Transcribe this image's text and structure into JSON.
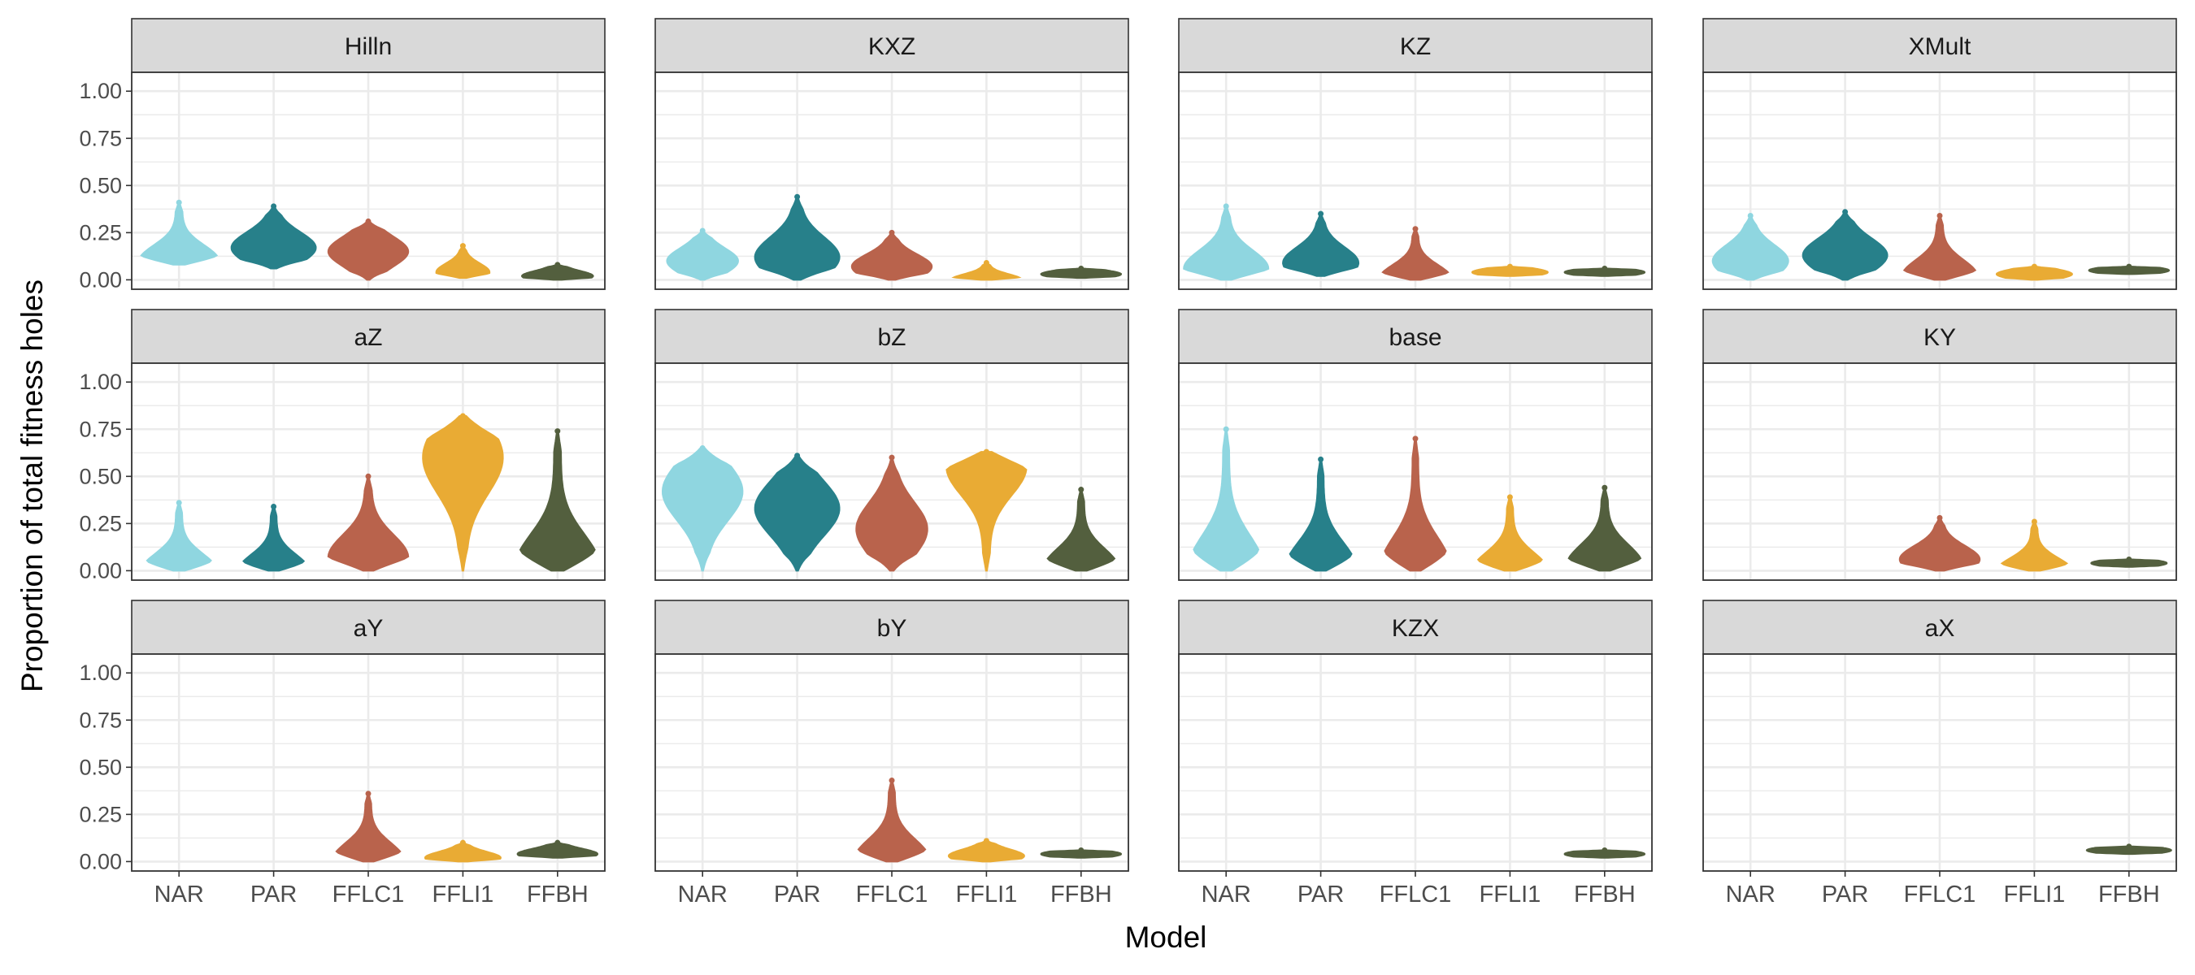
{
  "chart_data": {
    "type": "violin",
    "xlabel": "Model",
    "ylabel": "Proportion of total fitness holes",
    "ylim": [
      -0.05,
      1.1
    ],
    "y_ticks": [
      0.0,
      0.25,
      0.5,
      0.75,
      1.0
    ],
    "y_tick_labels": [
      "0.00",
      "0.25",
      "0.50",
      "0.75",
      "1.00"
    ],
    "categories": [
      "NAR",
      "PAR",
      "FFLC1",
      "FFLI1",
      "FFBH"
    ],
    "colors": {
      "NAR": "#8fd6e0",
      "PAR": "#27808a",
      "FFLC1": "#b9634c",
      "FFLI1": "#e9ab34",
      "FFBH": "#535f3e",
      "strip_fill": "#d9d9d9",
      "grid": "#ebebeb"
    },
    "grid": true,
    "layout": "facet_wrap 3 rows x 4 columns",
    "panels": [
      {
        "title": "Hilln",
        "violins": [
          {
            "model": "NAR",
            "min": 0.08,
            "max": 0.41,
            "mode": 0.1,
            "width": 0.9
          },
          {
            "model": "PAR",
            "min": 0.06,
            "max": 0.39,
            "mode": 0.17,
            "width": 0.95
          },
          {
            "model": "FFLC1",
            "min": 0.0,
            "max": 0.31,
            "mode": 0.15,
            "width": 0.9
          },
          {
            "model": "FFLI1",
            "min": 0.01,
            "max": 0.18,
            "mode": 0.04,
            "width": 0.6
          },
          {
            "model": "FFBH",
            "min": 0.0,
            "max": 0.08,
            "mode": 0.02,
            "width": 0.8
          }
        ]
      },
      {
        "title": "KXZ",
        "violins": [
          {
            "model": "NAR",
            "min": 0.0,
            "max": 0.26,
            "mode": 0.1,
            "width": 0.8
          },
          {
            "model": "PAR",
            "min": 0.0,
            "max": 0.44,
            "mode": 0.12,
            "width": 0.95
          },
          {
            "model": "FFLC1",
            "min": 0.0,
            "max": 0.25,
            "mode": 0.07,
            "width": 0.9
          },
          {
            "model": "FFLI1",
            "min": 0.0,
            "max": 0.09,
            "mode": 0.0,
            "width": 0.8
          },
          {
            "model": "FFBH",
            "min": 0.01,
            "max": 0.06,
            "mode": 0.03,
            "width": 0.9
          }
        ]
      },
      {
        "title": "KZ",
        "violins": [
          {
            "model": "NAR",
            "min": 0.0,
            "max": 0.39,
            "mode": 0.06,
            "width": 0.95
          },
          {
            "model": "PAR",
            "min": 0.02,
            "max": 0.35,
            "mode": 0.09,
            "width": 0.85
          },
          {
            "model": "FFLC1",
            "min": 0.0,
            "max": 0.27,
            "mode": 0.01,
            "width": 0.8
          },
          {
            "model": "FFLI1",
            "min": 0.02,
            "max": 0.07,
            "mode": 0.04,
            "width": 0.85
          },
          {
            "model": "FFBH",
            "min": 0.02,
            "max": 0.06,
            "mode": 0.04,
            "width": 0.9
          }
        ]
      },
      {
        "title": "XMult",
        "violins": [
          {
            "model": "NAR",
            "min": 0.0,
            "max": 0.34,
            "mode": 0.1,
            "width": 0.85
          },
          {
            "model": "PAR",
            "min": 0.0,
            "max": 0.36,
            "mode": 0.13,
            "width": 0.95
          },
          {
            "model": "FFLC1",
            "min": 0.0,
            "max": 0.34,
            "mode": 0.02,
            "width": 0.85
          },
          {
            "model": "FFLI1",
            "min": 0.0,
            "max": 0.07,
            "mode": 0.03,
            "width": 0.85
          },
          {
            "model": "FFBH",
            "min": 0.03,
            "max": 0.07,
            "mode": 0.05,
            "width": 0.9
          }
        ]
      },
      {
        "title": "aZ",
        "violins": [
          {
            "model": "NAR",
            "min": 0.0,
            "max": 0.36,
            "mode": 0.0,
            "width": 0.85
          },
          {
            "model": "PAR",
            "min": 0.0,
            "max": 0.34,
            "mode": 0.0,
            "width": 0.8
          },
          {
            "model": "FFLC1",
            "min": 0.0,
            "max": 0.5,
            "mode": 0.07,
            "width": 0.9
          },
          {
            "model": "FFLI1",
            "min": 0.0,
            "max": 0.82,
            "mode": 0.6,
            "width": 0.9
          },
          {
            "model": "FFBH",
            "min": 0.0,
            "max": 0.74,
            "mode": 0.02,
            "width": 0.95
          }
        ]
      },
      {
        "title": "bZ",
        "violins": [
          {
            "model": "NAR",
            "min": 0.0,
            "max": 0.65,
            "mode": 0.42,
            "width": 0.9
          },
          {
            "model": "PAR",
            "min": 0.0,
            "max": 0.61,
            "mode": 0.33,
            "width": 0.95
          },
          {
            "model": "FFLC1",
            "min": 0.0,
            "max": 0.6,
            "mode": 0.22,
            "width": 0.8
          },
          {
            "model": "FFLI1",
            "min": 0.0,
            "max": 0.63,
            "mode": 0.55,
            "width": 0.9
          },
          {
            "model": "FFBH",
            "min": 0.0,
            "max": 0.43,
            "mode": 0.01,
            "width": 0.85
          }
        ]
      },
      {
        "title": "base",
        "violins": [
          {
            "model": "NAR",
            "min": 0.0,
            "max": 0.75,
            "mode": 0.01,
            "width": 0.85
          },
          {
            "model": "PAR",
            "min": 0.0,
            "max": 0.59,
            "mode": 0.01,
            "width": 0.8
          },
          {
            "model": "FFLC1",
            "min": 0.0,
            "max": 0.7,
            "mode": 0.01,
            "width": 0.8
          },
          {
            "model": "FFLI1",
            "min": 0.0,
            "max": 0.39,
            "mode": 0.0,
            "width": 0.85
          },
          {
            "model": "FFBH",
            "min": 0.0,
            "max": 0.44,
            "mode": 0.03,
            "width": 0.85
          }
        ]
      },
      {
        "title": "KY",
        "violins": [
          {
            "model": "FFLC1",
            "min": 0.0,
            "max": 0.28,
            "mode": 0.06,
            "width": 0.9
          },
          {
            "model": "FFLI1",
            "min": 0.0,
            "max": 0.26,
            "mode": 0.0,
            "width": 0.85
          },
          {
            "model": "FFBH",
            "min": 0.02,
            "max": 0.06,
            "mode": 0.04,
            "width": 0.85
          }
        ]
      },
      {
        "title": "aY",
        "violins": [
          {
            "model": "FFLC1",
            "min": 0.0,
            "max": 0.36,
            "mode": 0.01,
            "width": 0.8
          },
          {
            "model": "FFLI1",
            "min": 0.0,
            "max": 0.1,
            "mode": 0.02,
            "width": 0.85
          },
          {
            "model": "FFBH",
            "min": 0.02,
            "max": 0.1,
            "mode": 0.04,
            "width": 0.9
          }
        ]
      },
      {
        "title": "bY",
        "violins": [
          {
            "model": "FFLC1",
            "min": 0.0,
            "max": 0.43,
            "mode": 0.01,
            "width": 0.85
          },
          {
            "model": "FFLI1",
            "min": 0.0,
            "max": 0.11,
            "mode": 0.03,
            "width": 0.85
          },
          {
            "model": "FFBH",
            "min": 0.02,
            "max": 0.06,
            "mode": 0.04,
            "width": 0.9
          }
        ]
      },
      {
        "title": "KZX",
        "violins": [
          {
            "model": "FFBH",
            "min": 0.02,
            "max": 0.06,
            "mode": 0.04,
            "width": 0.9
          }
        ]
      },
      {
        "title": "aX",
        "violins": [
          {
            "model": "FFBH",
            "min": 0.04,
            "max": 0.08,
            "mode": 0.06,
            "width": 0.95
          }
        ]
      }
    ]
  }
}
